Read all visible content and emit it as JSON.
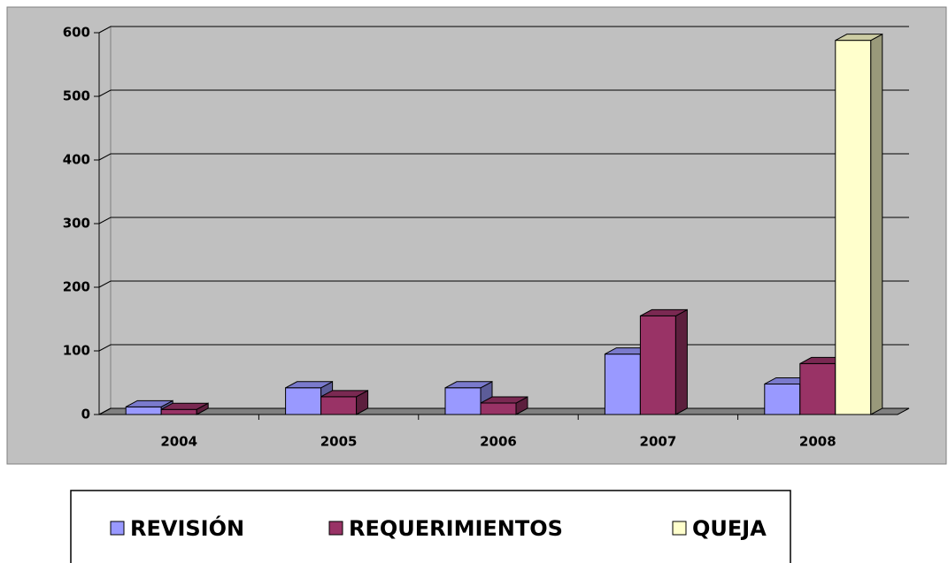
{
  "chart_data": {
    "type": "bar3d",
    "categories": [
      "2004",
      "2005",
      "2006",
      "2007",
      "2008"
    ],
    "series": [
      {
        "name": "REVISIÓN",
        "color": "#9999ff",
        "values": [
          12,
          42,
          42,
          95,
          48
        ]
      },
      {
        "name": "REQUERIMIENTOS",
        "color": "#993366",
        "values": [
          8,
          28,
          18,
          155,
          80
        ]
      },
      {
        "name": "QUEJA",
        "color": "#ffffcc",
        "values": [
          null,
          null,
          null,
          null,
          588
        ]
      }
    ],
    "ylim": [
      0,
      600
    ],
    "yticks": [
      0,
      100,
      200,
      300,
      400,
      500,
      600
    ],
    "grid": true,
    "legend": "bottom"
  }
}
